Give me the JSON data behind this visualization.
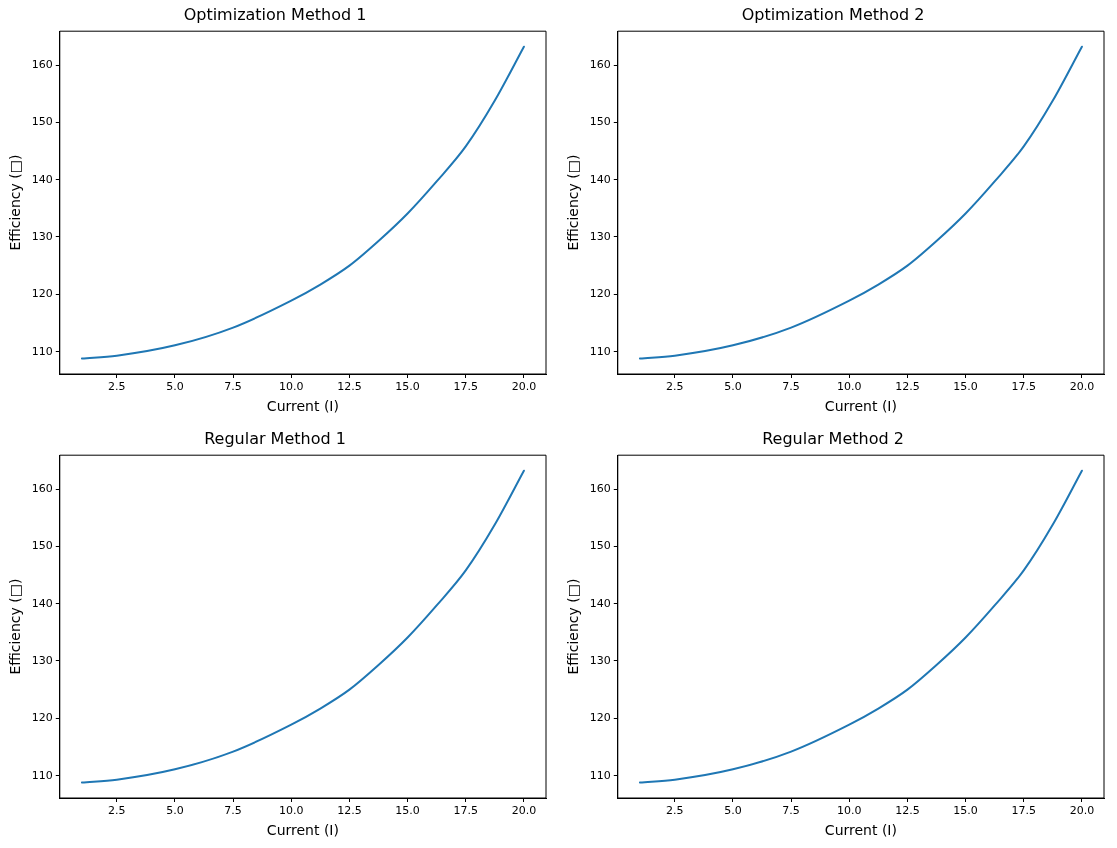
{
  "chart_data": [
    {
      "type": "line",
      "title": "Optimization Method 1",
      "xlabel": "Current (I)",
      "ylabel": "Efficiency (□)",
      "xlim": [
        0.05,
        20.95
      ],
      "ylim": [
        106.1,
        165.9
      ],
      "xticks": [
        2.5,
        {
          "value": 5,
          "label": "5.0"
        },
        7.5,
        {
          "value": 10,
          "label": "10.0"
        },
        12.5,
        {
          "value": 15,
          "label": "15.0"
        },
        17.5,
        {
          "value": 20,
          "label": "20.0"
        }
      ],
      "yticks": [
        110,
        120,
        130,
        140,
        150,
        160
      ],
      "grid": false,
      "legend": false,
      "series": [
        {
          "color": "#1f77b4",
          "x": [
            1,
            2.5,
            5,
            7.5,
            10,
            11.25,
            12.5,
            13.75,
            15,
            16.25,
            17.5,
            18.75,
            20
          ],
          "values": [
            108.8,
            109.3,
            111.1,
            114.2,
            118.9,
            121.7,
            125.0,
            129.3,
            134.1,
            139.7,
            145.8,
            153.8,
            163.2
          ]
        }
      ]
    },
    {
      "type": "line",
      "title": "Optimization Method 2",
      "xlabel": "Current (I)",
      "ylabel": "Efficiency (□)",
      "xlim": [
        0.05,
        20.95
      ],
      "ylim": [
        106.1,
        165.9
      ],
      "xticks": [
        2.5,
        {
          "value": 5,
          "label": "5.0"
        },
        7.5,
        {
          "value": 10,
          "label": "10.0"
        },
        12.5,
        {
          "value": 15,
          "label": "15.0"
        },
        17.5,
        {
          "value": 20,
          "label": "20.0"
        }
      ],
      "yticks": [
        110,
        120,
        130,
        140,
        150,
        160
      ],
      "grid": false,
      "legend": false,
      "series": [
        {
          "color": "#1f77b4",
          "x": [
            1,
            2.5,
            5,
            7.5,
            10,
            11.25,
            12.5,
            13.75,
            15,
            16.25,
            17.5,
            18.75,
            20
          ],
          "values": [
            108.8,
            109.3,
            111.1,
            114.2,
            118.9,
            121.7,
            125.0,
            129.3,
            134.1,
            139.7,
            145.8,
            153.8,
            163.2
          ]
        }
      ]
    },
    {
      "type": "line",
      "title": "Regular Method 1",
      "xlabel": "Current (I)",
      "ylabel": "Efficiency (□)",
      "xlim": [
        0.05,
        20.95
      ],
      "ylim": [
        106.1,
        165.9
      ],
      "xticks": [
        2.5,
        {
          "value": 5,
          "label": "5.0"
        },
        7.5,
        {
          "value": 10,
          "label": "10.0"
        },
        12.5,
        {
          "value": 15,
          "label": "15.0"
        },
        17.5,
        {
          "value": 20,
          "label": "20.0"
        }
      ],
      "yticks": [
        110,
        120,
        130,
        140,
        150,
        160
      ],
      "grid": false,
      "legend": false,
      "series": [
        {
          "color": "#1f77b4",
          "x": [
            1,
            2.5,
            5,
            7.5,
            10,
            11.25,
            12.5,
            13.75,
            15,
            16.25,
            17.5,
            18.75,
            20
          ],
          "values": [
            108.8,
            109.3,
            111.1,
            114.2,
            118.9,
            121.7,
            125.0,
            129.3,
            134.1,
            139.7,
            145.8,
            153.8,
            163.2
          ]
        }
      ]
    },
    {
      "type": "line",
      "title": "Regular Method 2",
      "xlabel": "Current (I)",
      "ylabel": "Efficiency (□)",
      "xlim": [
        0.05,
        20.95
      ],
      "ylim": [
        106.1,
        165.9
      ],
      "xticks": [
        2.5,
        {
          "value": 5,
          "label": "5.0"
        },
        7.5,
        {
          "value": 10,
          "label": "10.0"
        },
        12.5,
        {
          "value": 15,
          "label": "15.0"
        },
        17.5,
        {
          "value": 20,
          "label": "20.0"
        }
      ],
      "yticks": [
        110,
        120,
        130,
        140,
        150,
        160
      ],
      "grid": false,
      "legend": false,
      "series": [
        {
          "color": "#1f77b4",
          "x": [
            1,
            2.5,
            5,
            7.5,
            10,
            11.25,
            12.5,
            13.75,
            15,
            16.25,
            17.5,
            18.75,
            20
          ],
          "values": [
            108.8,
            109.3,
            111.1,
            114.2,
            118.9,
            121.7,
            125.0,
            129.3,
            134.1,
            139.7,
            145.8,
            153.8,
            163.2
          ]
        }
      ]
    }
  ]
}
